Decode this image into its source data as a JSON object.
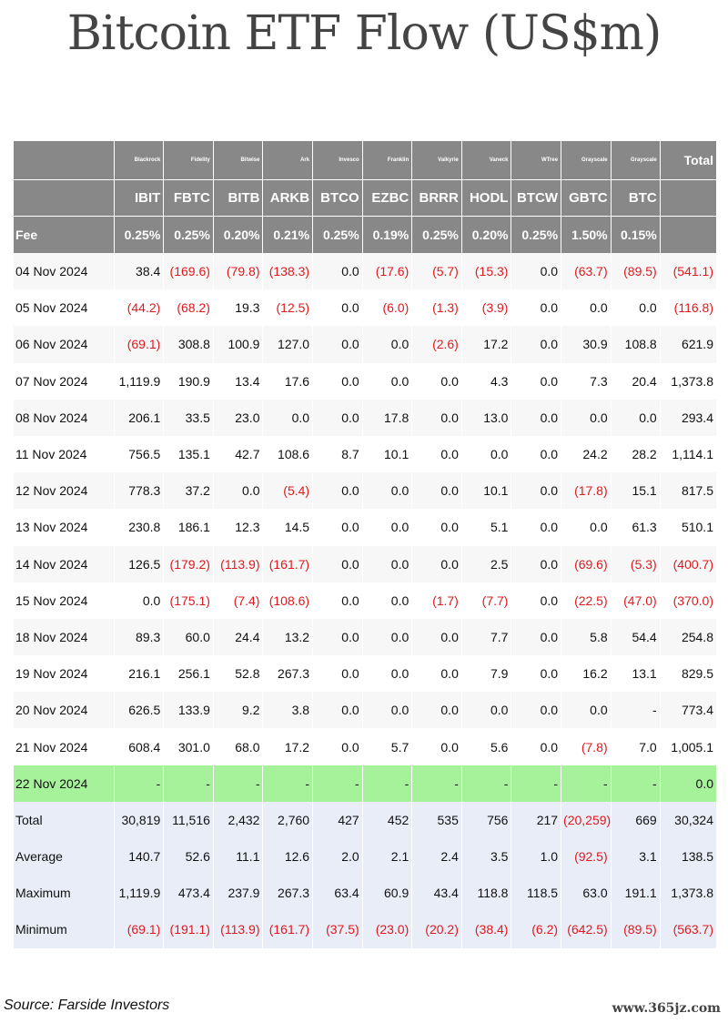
{
  "chart_data": {
    "type": "table",
    "title": "Bitcoin ETF Flow (US$m)",
    "issuers": [
      "Blackrock",
      "Fidelity",
      "Bitwise",
      "Ark",
      "Invesco",
      "Franklin",
      "Valkyrie",
      "Vaneck",
      "WTree",
      "Grayscale",
      "Grayscale"
    ],
    "tickers": [
      "IBIT",
      "FBTC",
      "BITB",
      "ARKB",
      "BTCO",
      "EZBC",
      "BRRR",
      "HODL",
      "BTCW",
      "GBTC",
      "BTC"
    ],
    "total_label": "Total",
    "fee_label": "Fee",
    "fees": [
      "0.25%",
      "0.25%",
      "0.20%",
      "0.21%",
      "0.25%",
      "0.19%",
      "0.25%",
      "0.20%",
      "0.25%",
      "1.50%",
      "0.15%"
    ],
    "rows": [
      {
        "date": "04 Nov 2024",
        "values": [
          "38.4",
          "(169.6)",
          "(79.8)",
          "(138.3)",
          "0.0",
          "(17.6)",
          "(5.7)",
          "(15.3)",
          "0.0",
          "(63.7)",
          "(89.5)"
        ],
        "total": "(541.1)"
      },
      {
        "date": "05 Nov 2024",
        "values": [
          "(44.2)",
          "(68.2)",
          "19.3",
          "(12.5)",
          "0.0",
          "(6.0)",
          "(1.3)",
          "(3.9)",
          "0.0",
          "0.0",
          "0.0"
        ],
        "total": "(116.8)"
      },
      {
        "date": "06 Nov 2024",
        "values": [
          "(69.1)",
          "308.8",
          "100.9",
          "127.0",
          "0.0",
          "0.0",
          "(2.6)",
          "17.2",
          "0.0",
          "30.9",
          "108.8"
        ],
        "total": "621.9"
      },
      {
        "date": "07 Nov 2024",
        "values": [
          "1,119.9",
          "190.9",
          "13.4",
          "17.6",
          "0.0",
          "0.0",
          "0.0",
          "4.3",
          "0.0",
          "7.3",
          "20.4"
        ],
        "total": "1,373.8"
      },
      {
        "date": "08 Nov 2024",
        "values": [
          "206.1",
          "33.5",
          "23.0",
          "0.0",
          "0.0",
          "17.8",
          "0.0",
          "13.0",
          "0.0",
          "0.0",
          "0.0"
        ],
        "total": "293.4"
      },
      {
        "date": "11 Nov 2024",
        "values": [
          "756.5",
          "135.1",
          "42.7",
          "108.6",
          "8.7",
          "10.1",
          "0.0",
          "0.0",
          "0.0",
          "24.2",
          "28.2"
        ],
        "total": "1,114.1"
      },
      {
        "date": "12 Nov 2024",
        "values": [
          "778.3",
          "37.2",
          "0.0",
          "(5.4)",
          "0.0",
          "0.0",
          "0.0",
          "10.1",
          "0.0",
          "(17.8)",
          "15.1"
        ],
        "total": "817.5"
      },
      {
        "date": "13 Nov 2024",
        "values": [
          "230.8",
          "186.1",
          "12.3",
          "14.5",
          "0.0",
          "0.0",
          "0.0",
          "5.1",
          "0.0",
          "0.0",
          "61.3"
        ],
        "total": "510.1"
      },
      {
        "date": "14 Nov 2024",
        "values": [
          "126.5",
          "(179.2)",
          "(113.9)",
          "(161.7)",
          "0.0",
          "0.0",
          "0.0",
          "2.5",
          "0.0",
          "(69.6)",
          "(5.3)"
        ],
        "total": "(400.7)"
      },
      {
        "date": "15 Nov 2024",
        "values": [
          "0.0",
          "(175.1)",
          "(7.4)",
          "(108.6)",
          "0.0",
          "0.0",
          "(1.7)",
          "(7.7)",
          "0.0",
          "(22.5)",
          "(47.0)"
        ],
        "total": "(370.0)"
      },
      {
        "date": "18 Nov 2024",
        "values": [
          "89.3",
          "60.0",
          "24.4",
          "13.2",
          "0.0",
          "0.0",
          "0.0",
          "7.7",
          "0.0",
          "5.8",
          "54.4"
        ],
        "total": "254.8"
      },
      {
        "date": "19 Nov 2024",
        "values": [
          "216.1",
          "256.1",
          "52.8",
          "267.3",
          "0.0",
          "0.0",
          "0.0",
          "7.9",
          "0.0",
          "16.2",
          "13.1"
        ],
        "total": "829.5"
      },
      {
        "date": "20 Nov 2024",
        "values": [
          "626.5",
          "133.9",
          "9.2",
          "3.8",
          "0.0",
          "0.0",
          "0.0",
          "0.0",
          "0.0",
          "0.0",
          "-"
        ],
        "total": "773.4"
      },
      {
        "date": "21 Nov 2024",
        "values": [
          "608.4",
          "301.0",
          "68.0",
          "17.2",
          "0.0",
          "5.7",
          "0.0",
          "5.6",
          "0.0",
          "(7.8)",
          "7.0"
        ],
        "total": "1,005.1"
      },
      {
        "date": "22 Nov 2024",
        "values": [
          "-",
          "-",
          "-",
          "-",
          "-",
          "-",
          "-",
          "-",
          "-",
          "-",
          "-"
        ],
        "total": "0.0",
        "highlight": true
      }
    ],
    "summary": [
      {
        "label": "Total",
        "values": [
          "30,819",
          "11,516",
          "2,432",
          "2,760",
          "427",
          "452",
          "535",
          "756",
          "217",
          "(20,259)",
          "669"
        ],
        "total": "30,324"
      },
      {
        "label": "Average",
        "values": [
          "140.7",
          "52.6",
          "11.1",
          "12.6",
          "2.0",
          "2.1",
          "2.4",
          "3.5",
          "1.0",
          "(92.5)",
          "3.1"
        ],
        "total": "138.5"
      },
      {
        "label": "Maximum",
        "values": [
          "1,119.9",
          "473.4",
          "237.9",
          "267.3",
          "63.4",
          "60.9",
          "43.4",
          "118.8",
          "118.5",
          "63.0",
          "191.1"
        ],
        "total": "1,373.8"
      },
      {
        "label": "Minimum",
        "values": [
          "(69.1)",
          "(191.1)",
          "(113.9)",
          "(161.7)",
          "(37.5)",
          "(23.0)",
          "(20.2)",
          "(38.4)",
          "(6.2)",
          "(642.5)",
          "(89.5)"
        ],
        "total": "(563.7)"
      }
    ],
    "colors": {
      "header_bg": "#888888",
      "negative": "#e0191e",
      "highlight_row": "#a6f29b",
      "summary_bg": "#e9edf7",
      "row_bg": "#f7f7f7"
    }
  },
  "source": "Source: Farside Investors",
  "watermark": "www.365jz.com"
}
